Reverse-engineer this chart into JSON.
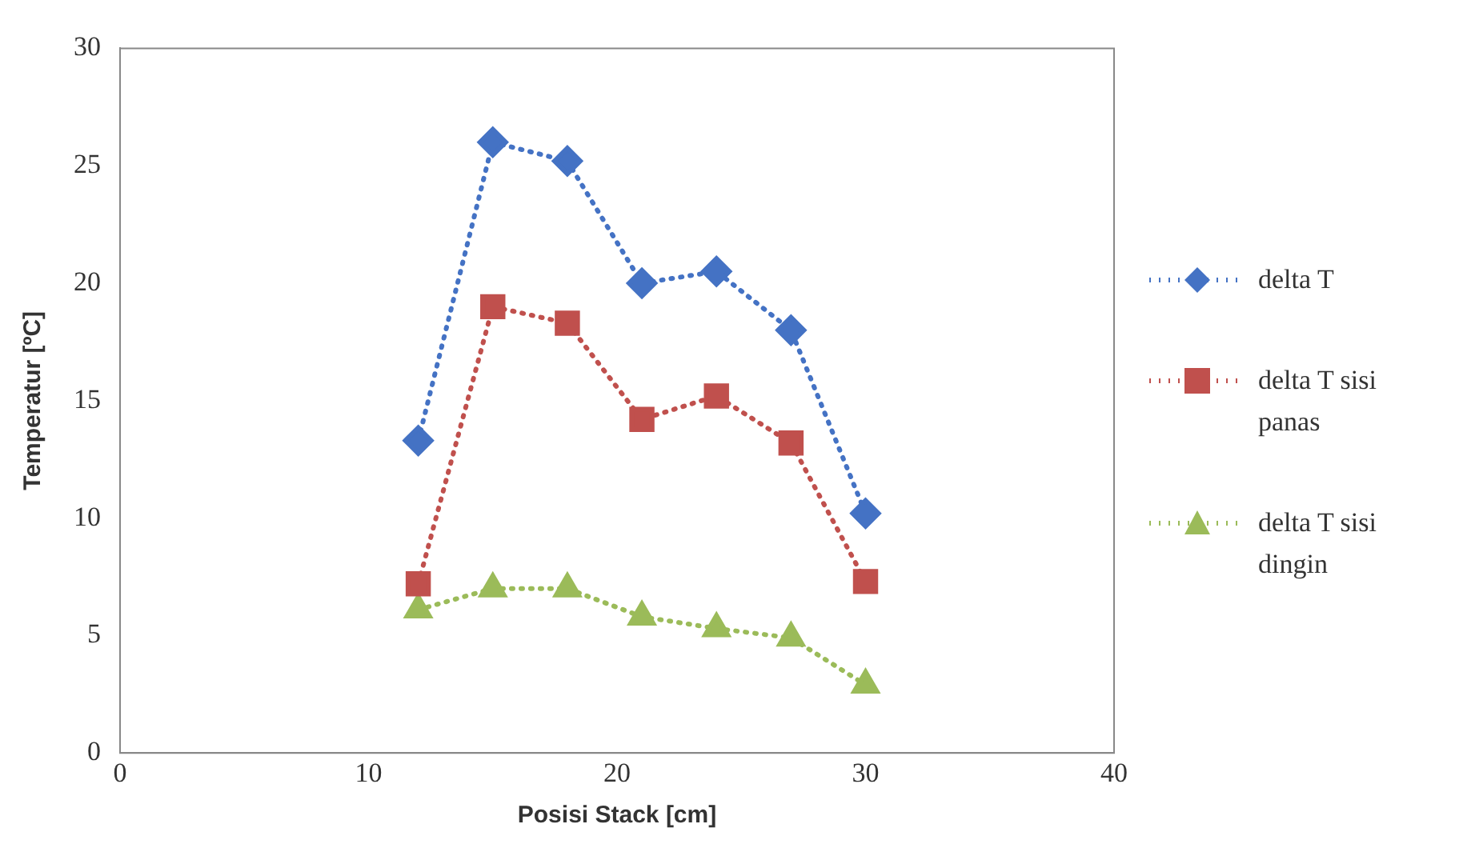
{
  "chart_data": {
    "type": "line",
    "xlabel": "Posisi Stack [cm]",
    "ylabel": "Temperatur [ºC]",
    "x": [
      12,
      15,
      18,
      21,
      24,
      27,
      30
    ],
    "xlim": [
      0,
      40
    ],
    "xticks": [
      0,
      10,
      20,
      30,
      40
    ],
    "ylim": [
      0,
      30
    ],
    "yticks": [
      0,
      5,
      10,
      15,
      20,
      25,
      30
    ],
    "grid": false,
    "legend": "right",
    "line_style": "dotted",
    "series": [
      {
        "name": "delta T",
        "color": "#4472c4",
        "marker": "diamond",
        "values": [
          13.3,
          26.0,
          25.2,
          20.0,
          20.5,
          18.0,
          10.2
        ]
      },
      {
        "name": "delta T sisi panas",
        "color": "#c0504d",
        "marker": "square",
        "values": [
          7.2,
          19.0,
          18.3,
          14.2,
          15.2,
          13.2,
          7.3
        ]
      },
      {
        "name": "delta T sisi dingin",
        "color": "#9bbb59",
        "marker": "triangle",
        "values": [
          6.1,
          7.0,
          7.0,
          5.8,
          5.3,
          4.9,
          2.9
        ]
      }
    ]
  }
}
